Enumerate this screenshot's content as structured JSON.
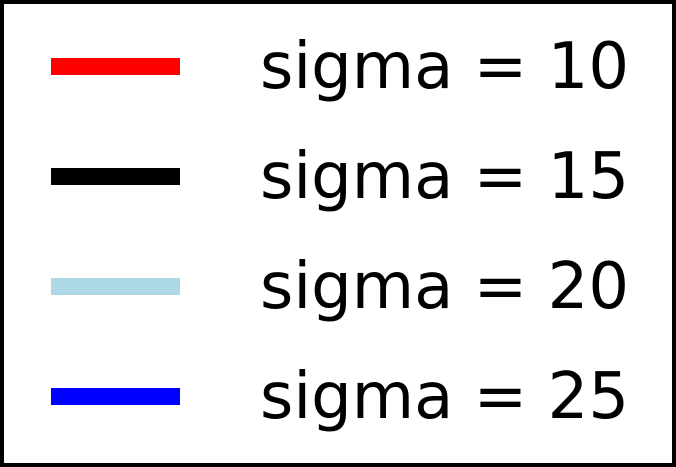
{
  "chart_data": {
    "type": "line",
    "legend": {
      "entries": [
        {
          "label": "sigma = 10",
          "color": "#ff0000"
        },
        {
          "label": "sigma = 15",
          "color": "#000000"
        },
        {
          "label": "sigma = 20",
          "color": "#add8e6"
        },
        {
          "label": "sigma = 25",
          "color": "#0000ff"
        }
      ]
    }
  }
}
